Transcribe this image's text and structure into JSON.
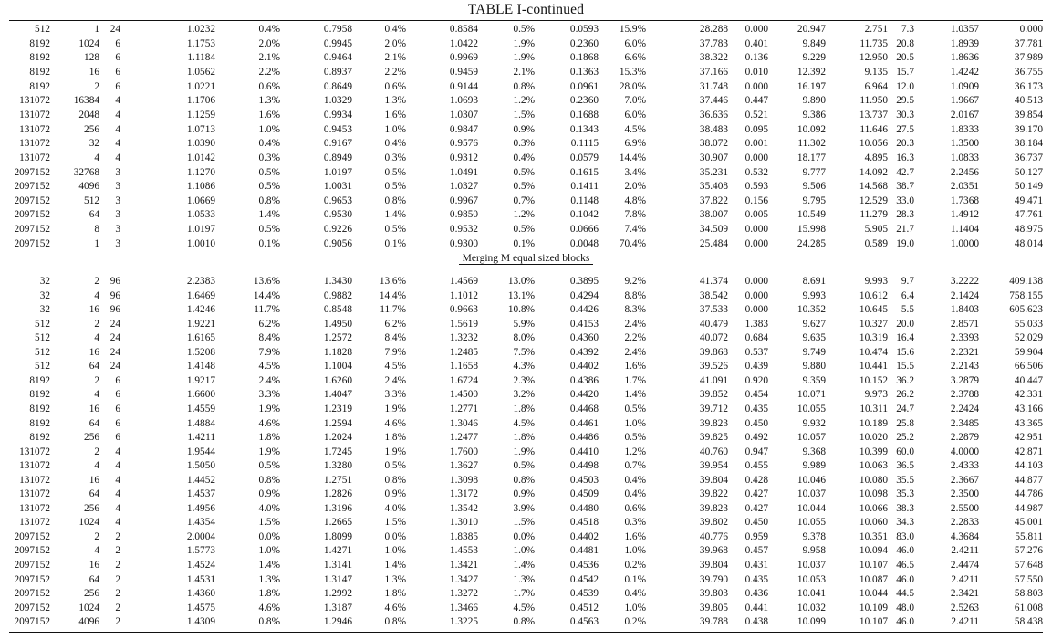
{
  "title": "TABLE I-continued",
  "section_label": "Merging M equal sized blocks",
  "block1": [
    [
      "512",
      "1",
      "24",
      "1.0232",
      "0.4%",
      "0.7958",
      "0.4%",
      "0.8584",
      "0.5%",
      "0.0593",
      "15.9%",
      "28.288",
      "0.000",
      "20.947",
      "2.751",
      "7.3",
      "1.0357",
      "0.000"
    ],
    [
      "8192",
      "1024",
      "6",
      "1.1753",
      "2.0%",
      "0.9945",
      "2.0%",
      "1.0422",
      "1.9%",
      "0.2360",
      "6.0%",
      "37.783",
      "0.401",
      "9.849",
      "11.735",
      "20.8",
      "1.8939",
      "37.781"
    ],
    [
      "8192",
      "128",
      "6",
      "1.1184",
      "2.1%",
      "0.9464",
      "2.1%",
      "0.9969",
      "1.9%",
      "0.1868",
      "6.6%",
      "38.322",
      "0.136",
      "9.229",
      "12.950",
      "20.5",
      "1.8636",
      "37.989"
    ],
    [
      "8192",
      "16",
      "6",
      "1.0562",
      "2.2%",
      "0.8937",
      "2.2%",
      "0.9459",
      "2.1%",
      "0.1363",
      "15.3%",
      "37.166",
      "0.010",
      "12.392",
      "9.135",
      "15.7",
      "1.4242",
      "36.755"
    ],
    [
      "8192",
      "2",
      "6",
      "1.0221",
      "0.6%",
      "0.8649",
      "0.6%",
      "0.9144",
      "0.8%",
      "0.0961",
      "28.0%",
      "31.748",
      "0.000",
      "16.197",
      "6.964",
      "12.0",
      "1.0909",
      "36.173"
    ],
    [
      "131072",
      "16384",
      "4",
      "1.1706",
      "1.3%",
      "1.0329",
      "1.3%",
      "1.0693",
      "1.2%",
      "0.2360",
      "7.0%",
      "37.446",
      "0.447",
      "9.890",
      "11.950",
      "29.5",
      "1.9667",
      "40.513"
    ],
    [
      "131072",
      "2048",
      "4",
      "1.1259",
      "1.6%",
      "0.9934",
      "1.6%",
      "1.0307",
      "1.5%",
      "0.1688",
      "6.0%",
      "36.636",
      "0.521",
      "9.386",
      "13.737",
      "30.3",
      "2.0167",
      "39.854"
    ],
    [
      "131072",
      "256",
      "4",
      "1.0713",
      "1.0%",
      "0.9453",
      "1.0%",
      "0.9847",
      "0.9%",
      "0.1343",
      "4.5%",
      "38.483",
      "0.095",
      "10.092",
      "11.646",
      "27.5",
      "1.8333",
      "39.170"
    ],
    [
      "131072",
      "32",
      "4",
      "1.0390",
      "0.4%",
      "0.9167",
      "0.4%",
      "0.9576",
      "0.3%",
      "0.1115",
      "6.9%",
      "38.072",
      "0.001",
      "11.302",
      "10.056",
      "20.3",
      "1.3500",
      "38.184"
    ],
    [
      "131072",
      "4",
      "4",
      "1.0142",
      "0.3%",
      "0.8949",
      "0.3%",
      "0.9312",
      "0.4%",
      "0.0579",
      "14.4%",
      "30.907",
      "0.000",
      "18.177",
      "4.895",
      "16.3",
      "1.0833",
      "36.737"
    ],
    [
      "2097152",
      "32768",
      "3",
      "1.1270",
      "0.5%",
      "1.0197",
      "0.5%",
      "1.0491",
      "0.5%",
      "0.1615",
      "3.4%",
      "35.231",
      "0.532",
      "9.777",
      "14.092",
      "42.7",
      "2.2456",
      "50.127"
    ],
    [
      "2097152",
      "4096",
      "3",
      "1.1086",
      "0.5%",
      "1.0031",
      "0.5%",
      "1.0327",
      "0.5%",
      "0.1411",
      "2.0%",
      "35.408",
      "0.593",
      "9.506",
      "14.568",
      "38.7",
      "2.0351",
      "50.149"
    ],
    [
      "2097152",
      "512",
      "3",
      "1.0669",
      "0.8%",
      "0.9653",
      "0.8%",
      "0.9967",
      "0.7%",
      "0.1148",
      "4.8%",
      "37.822",
      "0.156",
      "9.795",
      "12.529",
      "33.0",
      "1.7368",
      "49.471"
    ],
    [
      "2097152",
      "64",
      "3",
      "1.0533",
      "1.4%",
      "0.9530",
      "1.4%",
      "0.9850",
      "1.2%",
      "0.1042",
      "7.8%",
      "38.007",
      "0.005",
      "10.549",
      "11.279",
      "28.3",
      "1.4912",
      "47.761"
    ],
    [
      "2097152",
      "8",
      "3",
      "1.0197",
      "0.5%",
      "0.9226",
      "0.5%",
      "0.9532",
      "0.5%",
      "0.0666",
      "7.4%",
      "34.509",
      "0.000",
      "15.998",
      "5.905",
      "21.7",
      "1.1404",
      "48.975"
    ],
    [
      "2097152",
      "1",
      "3",
      "1.0010",
      "0.1%",
      "0.9056",
      "0.1%",
      "0.9300",
      "0.1%",
      "0.0048",
      "70.4%",
      "25.484",
      "0.000",
      "24.285",
      "0.589",
      "19.0",
      "1.0000",
      "48.014"
    ]
  ],
  "block2": [
    [
      "32",
      "2",
      "96",
      "2.2383",
      "13.6%",
      "1.3430",
      "13.6%",
      "1.4569",
      "13.0%",
      "0.3895",
      "9.2%",
      "41.374",
      "0.000",
      "8.691",
      "9.993",
      "9.7",
      "3.2222",
      "409.138"
    ],
    [
      "32",
      "4",
      "96",
      "1.6469",
      "14.4%",
      "0.9882",
      "14.4%",
      "1.1012",
      "13.1%",
      "0.4294",
      "8.8%",
      "38.542",
      "0.000",
      "9.993",
      "10.612",
      "6.4",
      "2.1424",
      "758.155"
    ],
    [
      "32",
      "16",
      "96",
      "1.4246",
      "11.7%",
      "0.8548",
      "11.7%",
      "0.9663",
      "10.8%",
      "0.4426",
      "8.3%",
      "37.533",
      "0.000",
      "10.352",
      "10.645",
      "5.5",
      "1.8403",
      "605.623"
    ],
    [
      "512",
      "2",
      "24",
      "1.9221",
      "6.2%",
      "1.4950",
      "6.2%",
      "1.5619",
      "5.9%",
      "0.4153",
      "2.4%",
      "40.479",
      "1.383",
      "9.627",
      "10.327",
      "20.0",
      "2.8571",
      "55.033"
    ],
    [
      "512",
      "4",
      "24",
      "1.6165",
      "8.4%",
      "1.2572",
      "8.4%",
      "1.3232",
      "8.0%",
      "0.4360",
      "2.2%",
      "40.072",
      "0.684",
      "9.635",
      "10.319",
      "16.4",
      "2.3393",
      "52.029"
    ],
    [
      "512",
      "16",
      "24",
      "1.5208",
      "7.9%",
      "1.1828",
      "7.9%",
      "1.2485",
      "7.5%",
      "0.4392",
      "2.4%",
      "39.868",
      "0.537",
      "9.749",
      "10.474",
      "15.6",
      "2.2321",
      "59.904"
    ],
    [
      "512",
      "64",
      "24",
      "1.4148",
      "4.5%",
      "1.1004",
      "4.5%",
      "1.1658",
      "4.3%",
      "0.4402",
      "1.6%",
      "39.526",
      "0.439",
      "9.880",
      "10.441",
      "15.5",
      "2.2143",
      "66.506"
    ],
    [
      "8192",
      "2",
      "6",
      "1.9217",
      "2.4%",
      "1.6260",
      "2.4%",
      "1.6724",
      "2.3%",
      "0.4386",
      "1.7%",
      "41.091",
      "0.920",
      "9.359",
      "10.152",
      "36.2",
      "3.2879",
      "40.447"
    ],
    [
      "8192",
      "4",
      "6",
      "1.6600",
      "3.3%",
      "1.4047",
      "3.3%",
      "1.4500",
      "3.2%",
      "0.4420",
      "1.4%",
      "39.852",
      "0.454",
      "10.071",
      "9.973",
      "26.2",
      "2.3788",
      "42.331"
    ],
    [
      "8192",
      "16",
      "6",
      "1.4559",
      "1.9%",
      "1.2319",
      "1.9%",
      "1.2771",
      "1.8%",
      "0.4468",
      "0.5%",
      "39.712",
      "0.435",
      "10.055",
      "10.311",
      "24.7",
      "2.2424",
      "43.166"
    ],
    [
      "8192",
      "64",
      "6",
      "1.4884",
      "4.6%",
      "1.2594",
      "4.6%",
      "1.3046",
      "4.5%",
      "0.4461",
      "1.0%",
      "39.823",
      "0.450",
      "9.932",
      "10.189",
      "25.8",
      "2.3485",
      "43.365"
    ],
    [
      "8192",
      "256",
      "6",
      "1.4211",
      "1.8%",
      "1.2024",
      "1.8%",
      "1.2477",
      "1.8%",
      "0.4486",
      "0.5%",
      "39.825",
      "0.492",
      "10.057",
      "10.020",
      "25.2",
      "2.2879",
      "42.951"
    ],
    [
      "131072",
      "2",
      "4",
      "1.9544",
      "1.9%",
      "1.7245",
      "1.9%",
      "1.7600",
      "1.9%",
      "0.4410",
      "1.2%",
      "40.760",
      "0.947",
      "9.368",
      "10.399",
      "60.0",
      "4.0000",
      "42.871"
    ],
    [
      "131072",
      "4",
      "4",
      "1.5050",
      "0.5%",
      "1.3280",
      "0.5%",
      "1.3627",
      "0.5%",
      "0.4498",
      "0.7%",
      "39.954",
      "0.455",
      "9.989",
      "10.063",
      "36.5",
      "2.4333",
      "44.103"
    ],
    [
      "131072",
      "16",
      "4",
      "1.4452",
      "0.8%",
      "1.2751",
      "0.8%",
      "1.3098",
      "0.8%",
      "0.4503",
      "0.4%",
      "39.804",
      "0.428",
      "10.046",
      "10.080",
      "35.5",
      "2.3667",
      "44.877"
    ],
    [
      "131072",
      "64",
      "4",
      "1.4537",
      "0.9%",
      "1.2826",
      "0.9%",
      "1.3172",
      "0.9%",
      "0.4509",
      "0.4%",
      "39.822",
      "0.427",
      "10.037",
      "10.098",
      "35.3",
      "2.3500",
      "44.786"
    ],
    [
      "131072",
      "256",
      "4",
      "1.4956",
      "4.0%",
      "1.3196",
      "4.0%",
      "1.3542",
      "3.9%",
      "0.4480",
      "0.6%",
      "39.823",
      "0.427",
      "10.044",
      "10.066",
      "38.3",
      "2.5500",
      "44.987"
    ],
    [
      "131072",
      "1024",
      "4",
      "1.4354",
      "1.5%",
      "1.2665",
      "1.5%",
      "1.3010",
      "1.5%",
      "0.4518",
      "0.3%",
      "39.802",
      "0.450",
      "10.055",
      "10.060",
      "34.3",
      "2.2833",
      "45.001"
    ],
    [
      "2097152",
      "2",
      "2",
      "2.0004",
      "0.0%",
      "1.8099",
      "0.0%",
      "1.8385",
      "0.0%",
      "0.4402",
      "1.6%",
      "40.776",
      "0.959",
      "9.378",
      "10.351",
      "83.0",
      "4.3684",
      "55.811"
    ],
    [
      "2097152",
      "4",
      "2",
      "1.5773",
      "1.0%",
      "1.4271",
      "1.0%",
      "1.4553",
      "1.0%",
      "0.4481",
      "1.0%",
      "39.968",
      "0.457",
      "9.958",
      "10.094",
      "46.0",
      "2.4211",
      "57.276"
    ],
    [
      "2097152",
      "16",
      "2",
      "1.4524",
      "1.4%",
      "1.3141",
      "1.4%",
      "1.3421",
      "1.4%",
      "0.4536",
      "0.2%",
      "39.804",
      "0.431",
      "10.037",
      "10.107",
      "46.5",
      "2.4474",
      "57.648"
    ],
    [
      "2097152",
      "64",
      "2",
      "1.4531",
      "1.3%",
      "1.3147",
      "1.3%",
      "1.3427",
      "1.3%",
      "0.4542",
      "0.1%",
      "39.790",
      "0.435",
      "10.053",
      "10.087",
      "46.0",
      "2.4211",
      "57.550"
    ],
    [
      "2097152",
      "256",
      "2",
      "1.4360",
      "1.8%",
      "1.2992",
      "1.8%",
      "1.3272",
      "1.7%",
      "0.4539",
      "0.4%",
      "39.803",
      "0.436",
      "10.041",
      "10.044",
      "44.5",
      "2.3421",
      "58.803"
    ],
    [
      "2097152",
      "1024",
      "2",
      "1.4575",
      "4.6%",
      "1.3187",
      "4.6%",
      "1.3466",
      "4.5%",
      "0.4512",
      "1.0%",
      "39.805",
      "0.441",
      "10.032",
      "10.109",
      "48.0",
      "2.5263",
      "61.008"
    ],
    [
      "2097152",
      "4096",
      "2",
      "1.4309",
      "0.8%",
      "1.2946",
      "0.8%",
      "1.3225",
      "0.8%",
      "0.4563",
      "0.2%",
      "39.788",
      "0.438",
      "10.099",
      "10.107",
      "46.0",
      "2.4211",
      "58.438"
    ]
  ]
}
